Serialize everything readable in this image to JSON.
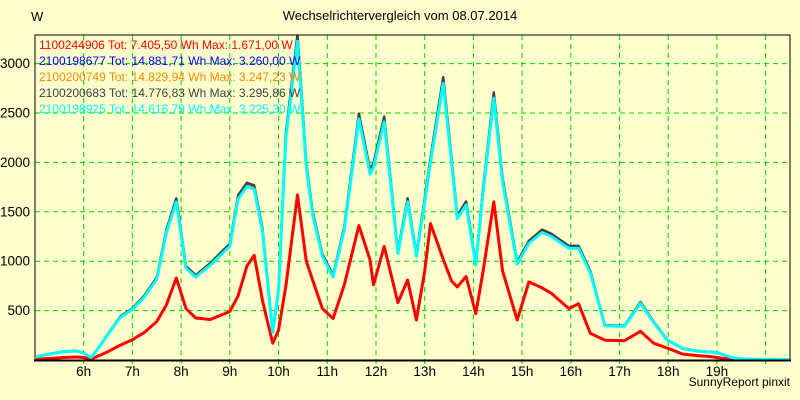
{
  "header": {
    "title": "Wechselrichtervergleich vom 08.07.2014"
  },
  "footer": {
    "credit": "SunnyReport pinxit"
  },
  "page": {
    "background": "#ffffce",
    "grid_color": "#00d600",
    "axis_color": "#000000"
  },
  "chart_data": {
    "type": "line",
    "title": "Wechselrichtervergleich vom 08.07.2014",
    "xlabel": "",
    "ylabel": "W",
    "xlim": [
      5.0,
      20.5
    ],
    "ylim": [
      0,
      3289
    ],
    "grid": "on",
    "legend_position": "top-left",
    "y_ticks": [
      500,
      1000,
      1500,
      2000,
      2500,
      3000
    ],
    "x_ticks": [
      {
        "value": 6,
        "label": "6h"
      },
      {
        "value": 7,
        "label": "7h"
      },
      {
        "value": 8,
        "label": "8h"
      },
      {
        "value": 9,
        "label": "9h"
      },
      {
        "value": 10,
        "label": "10h"
      },
      {
        "value": 11,
        "label": "11h"
      },
      {
        "value": 12,
        "label": "12h"
      },
      {
        "value": 13,
        "label": "13h"
      },
      {
        "value": 14,
        "label": "14h"
      },
      {
        "value": 15,
        "label": "15h"
      },
      {
        "value": 16,
        "label": "16h"
      },
      {
        "value": 17,
        "label": "17h"
      },
      {
        "value": 18,
        "label": "18h"
      },
      {
        "value": 19,
        "label": "19h"
      },
      {
        "value": 20,
        "label": ""
      }
    ],
    "x_hours": [
      5.05,
      5.3,
      5.6,
      5.85,
      6.0,
      6.15,
      6.3,
      6.5,
      6.75,
      7.0,
      7.25,
      7.5,
      7.7,
      7.9,
      8.1,
      8.3,
      8.6,
      8.85,
      9.0,
      9.17,
      9.35,
      9.5,
      9.67,
      9.88,
      10.0,
      10.15,
      10.39,
      10.57,
      10.7,
      10.9,
      11.12,
      11.35,
      11.65,
      11.88,
      11.95,
      12.17,
      12.45,
      12.65,
      12.83,
      13.0,
      13.12,
      13.38,
      13.55,
      13.67,
      13.85,
      14.05,
      14.2,
      14.42,
      14.6,
      14.9,
      15.14,
      15.41,
      15.6,
      15.96,
      16.16,
      16.4,
      16.7,
      17.1,
      17.43,
      17.7,
      17.98,
      18.3,
      18.6,
      18.85,
      19.0,
      19.15,
      19.3,
      19.55,
      19.8,
      20.1,
      20.45
    ],
    "series": [
      {
        "id": "1100244906",
        "color": "#ff0000",
        "width": 3,
        "total_wh": "7.405,50",
        "max_w": "1.671,00",
        "legend_label": "1100244906 Tot: 7.405,50 Wh Max: 1.671,00 W",
        "values": [
          8,
          15,
          25,
          30,
          25,
          8,
          40,
          85,
          150,
          205,
          280,
          390,
          560,
          830,
          520,
          425,
          410,
          460,
          490,
          650,
          950,
          1060,
          600,
          170,
          300,
          750,
          1671,
          1000,
          810,
          520,
          420,
          760,
          1360,
          1010,
          760,
          1150,
          580,
          810,
          405,
          900,
          1380,
          1020,
          800,
          740,
          845,
          470,
          900,
          1600,
          900,
          405,
          790,
          730,
          675,
          520,
          570,
          270,
          200,
          195,
          290,
          170,
          120,
          60,
          45,
          35,
          25,
          15,
          8,
          3,
          2,
          0,
          0
        ]
      },
      {
        "id": "2100198677",
        "color": "#0000ff",
        "width": 2.5,
        "total_wh": "14.881,71",
        "max_w": "3.260,00",
        "legend_label": "2100198677 Tot: 14.881,71 Wh Max: 3.260,00 W",
        "scale_of": "2100198925",
        "scale": 1.011
      },
      {
        "id": "2100200749",
        "color": "#ff8800",
        "width": 2.5,
        "total_wh": "14.829,94",
        "max_w": "3.247,23",
        "legend_label": "2100200749 Tot: 14.829,94 Wh Max: 3.247,23 W",
        "scale_of": "2100198925",
        "scale": 1.007
      },
      {
        "id": "2100200683",
        "color": "#404040",
        "width": 2.5,
        "total_wh": "14.776,83",
        "max_w": "3.295,86",
        "legend_label": "2100200683 Tot: 14.776,83 Wh Max: 3.295,86 W",
        "scale_of": "2100198925",
        "scale": 1.022
      },
      {
        "id": "2100198925",
        "color": "#00ffff",
        "width": 3,
        "total_wh": "14.616,79",
        "max_w": "3.225,30",
        "legend_label": "2100198925 Tot: 14.616,79 Wh Max: 3.225,30 W",
        "values": [
          35,
          60,
          85,
          90,
          70,
          25,
          120,
          260,
          430,
          510,
          640,
          820,
          1290,
          1600,
          930,
          840,
          960,
          1080,
          1150,
          1630,
          1755,
          1730,
          1300,
          280,
          700,
          2250,
          3225,
          1950,
          1470,
          1050,
          840,
          1320,
          2440,
          1880,
          1950,
          2410,
          1080,
          1600,
          1050,
          1600,
          2000,
          2800,
          2000,
          1430,
          1570,
          960,
          1700,
          2650,
          1800,
          970,
          1180,
          1290,
          1250,
          1130,
          1130,
          880,
          345,
          340,
          575,
          380,
          200,
          115,
          90,
          80,
          75,
          50,
          25,
          10,
          8,
          6,
          5
        ]
      }
    ]
  }
}
